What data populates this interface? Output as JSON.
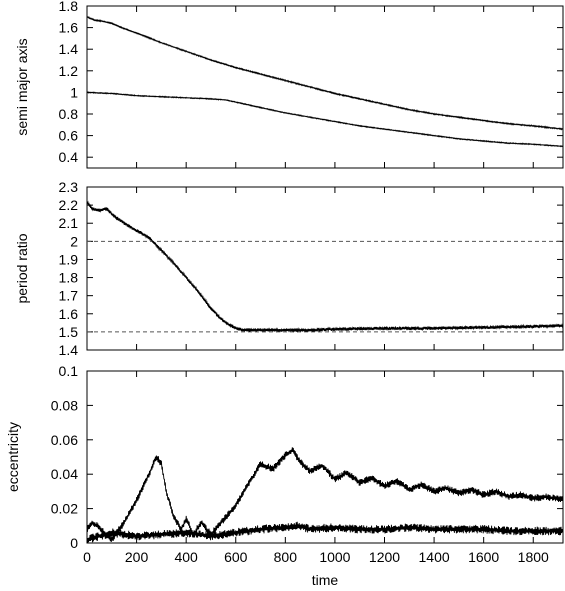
{
  "chart_data": [
    {
      "type": "line",
      "ylabel": "semi major axis",
      "xlabel": "",
      "xlim": [
        0,
        1920
      ],
      "ylim": [
        0.3,
        1.8
      ],
      "yticks": [
        0.4,
        0.6,
        0.8,
        1.0,
        1.2,
        1.4,
        1.6,
        1.8
      ],
      "ytick_labels": [
        "0.4",
        "0.6",
        "0.8",
        "1",
        "1.2",
        "1.4",
        "1.6",
        "1.8"
      ],
      "show_xtick_labels": false,
      "series": [
        {
          "x": [
            0,
            30,
            60,
            100,
            150,
            200,
            300,
            400,
            500,
            600,
            700,
            800,
            900,
            1000,
            1100,
            1200,
            1300,
            1400,
            1500,
            1600,
            1700,
            1800,
            1920
          ],
          "y": [
            1.7,
            1.67,
            1.66,
            1.64,
            1.59,
            1.55,
            1.46,
            1.38,
            1.3,
            1.23,
            1.17,
            1.11,
            1.05,
            0.99,
            0.94,
            0.89,
            0.84,
            0.8,
            0.77,
            0.74,
            0.71,
            0.69,
            0.66
          ],
          "noise": 0.004
        },
        {
          "x": [
            0,
            100,
            200,
            300,
            400,
            500,
            560,
            600,
            700,
            800,
            900,
            1000,
            1100,
            1200,
            1300,
            1400,
            1500,
            1600,
            1700,
            1800,
            1920
          ],
          "y": [
            1.0,
            0.99,
            0.97,
            0.96,
            0.95,
            0.94,
            0.93,
            0.91,
            0.86,
            0.81,
            0.77,
            0.73,
            0.69,
            0.66,
            0.63,
            0.6,
            0.57,
            0.55,
            0.53,
            0.52,
            0.5
          ],
          "noise": 0.003
        }
      ]
    },
    {
      "type": "line",
      "ylabel": "period ratio",
      "xlabel": "",
      "xlim": [
        0,
        1920
      ],
      "ylim": [
        1.4,
        2.3
      ],
      "yticks": [
        1.4,
        1.5,
        1.6,
        1.7,
        1.8,
        1.9,
        2.0,
        2.1,
        2.2,
        2.3
      ],
      "ytick_labels": [
        "1.4",
        "1.5",
        "1.6",
        "1.7",
        "1.8",
        "1.9",
        "2",
        "2.1",
        "2.2",
        "2.3"
      ],
      "show_xtick_labels": false,
      "reference_lines": [
        2.0,
        1.5
      ],
      "series": [
        {
          "x": [
            0,
            20,
            50,
            80,
            100,
            150,
            200,
            250,
            300,
            350,
            400,
            450,
            500,
            550,
            600,
            630,
            700,
            800,
            900,
            1000,
            1200,
            1400,
            1600,
            1800,
            1920
          ],
          "y": [
            2.22,
            2.18,
            2.17,
            2.18,
            2.15,
            2.1,
            2.06,
            2.02,
            1.95,
            1.88,
            1.8,
            1.72,
            1.63,
            1.56,
            1.52,
            1.51,
            1.51,
            1.51,
            1.51,
            1.515,
            1.52,
            1.52,
            1.525,
            1.53,
            1.535
          ],
          "noise": 0.007
        }
      ]
    },
    {
      "type": "line",
      "ylabel": "eccentricity",
      "xlabel": "time",
      "xlim": [
        0,
        1920
      ],
      "ylim": [
        0,
        0.1
      ],
      "yticks": [
        0,
        0.02,
        0.04,
        0.06,
        0.08,
        0.1
      ],
      "ytick_labels": [
        "0",
        "0.02",
        "0.04",
        "0.06",
        "0.08",
        "0.1"
      ],
      "xticks": [
        0,
        200,
        400,
        600,
        800,
        1000,
        1200,
        1400,
        1600,
        1800
      ],
      "xtick_labels": [
        "0",
        "200",
        "400",
        "600",
        "800",
        "1000",
        "1200",
        "1400",
        "1600",
        "1800"
      ],
      "show_xtick_labels": true,
      "series": [
        {
          "x": [
            0,
            20,
            50,
            80,
            100,
            150,
            200,
            250,
            280,
            300,
            320,
            350,
            380,
            400,
            430,
            460,
            500,
            530,
            560,
            600,
            650,
            700,
            750,
            800,
            830,
            860,
            900,
            950,
            1000,
            1050,
            1100,
            1150,
            1200,
            1250,
            1300,
            1350,
            1400,
            1450,
            1500,
            1550,
            1600,
            1650,
            1700,
            1750,
            1800,
            1850,
            1920
          ],
          "y": [
            0.008,
            0.012,
            0.009,
            0.004,
            0.002,
            0.012,
            0.025,
            0.04,
            0.05,
            0.046,
            0.03,
            0.015,
            0.008,
            0.014,
            0.005,
            0.012,
            0.005,
            0.01,
            0.015,
            0.022,
            0.034,
            0.046,
            0.043,
            0.051,
            0.054,
            0.047,
            0.042,
            0.045,
            0.037,
            0.041,
            0.035,
            0.038,
            0.033,
            0.036,
            0.031,
            0.034,
            0.03,
            0.032,
            0.029,
            0.031,
            0.028,
            0.03,
            0.027,
            0.028,
            0.026,
            0.027,
            0.025
          ],
          "noise": 0.0015
        },
        {
          "x": [
            0,
            50,
            100,
            200,
            300,
            400,
            500,
            600,
            700,
            800,
            850,
            900,
            1000,
            1100,
            1200,
            1300,
            1400,
            1500,
            1600,
            1700,
            1800,
            1920
          ],
          "y": [
            0.002,
            0.004,
            0.006,
            0.004,
            0.005,
            0.006,
            0.004,
            0.006,
            0.008,
            0.009,
            0.01,
            0.008,
            0.009,
            0.008,
            0.008,
            0.009,
            0.008,
            0.008,
            0.008,
            0.007,
            0.007,
            0.007
          ],
          "noise": 0.0018
        }
      ]
    }
  ]
}
